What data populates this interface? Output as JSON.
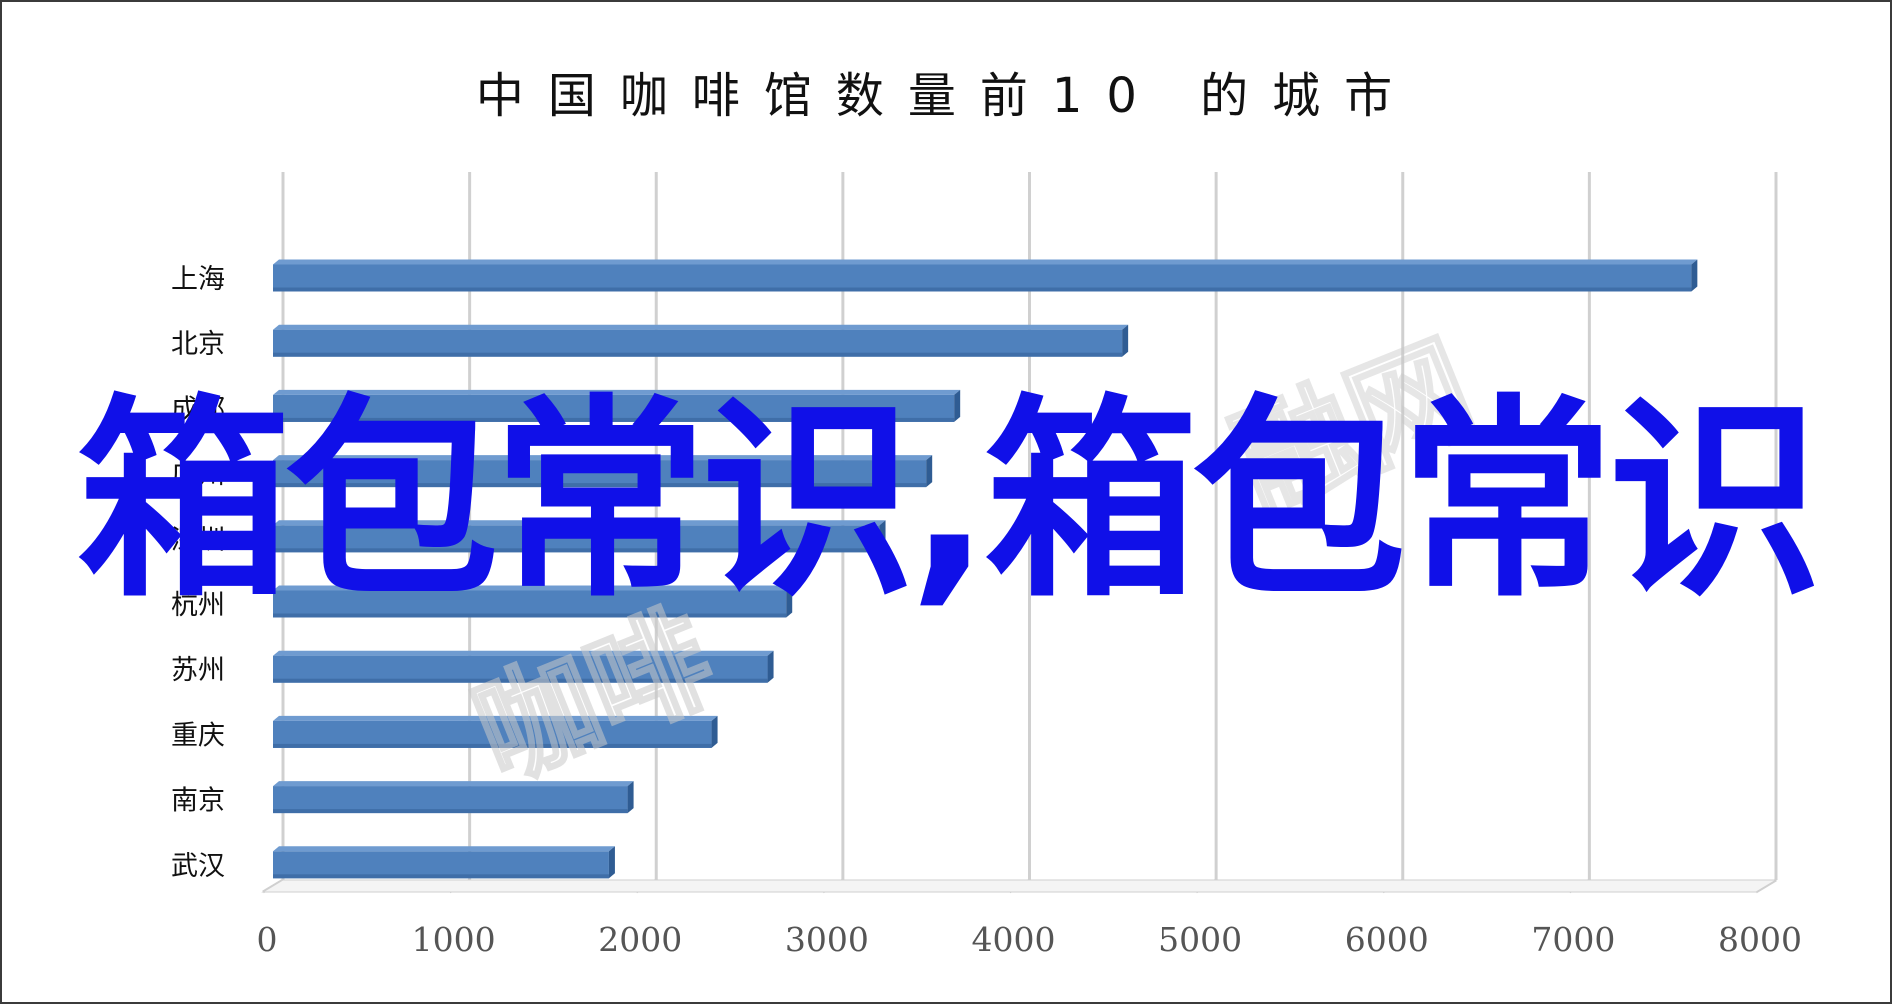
{
  "chart_data": {
    "type": "bar",
    "orientation": "horizontal",
    "title": "中国咖啡馆数量前10 的城市",
    "categories": [
      "上海",
      "北京",
      "成都",
      "广州",
      "深圳",
      "杭州",
      "苏州",
      "重庆",
      "南京",
      "武汉"
    ],
    "values": [
      7600,
      4550,
      3650,
      3500,
      3250,
      2750,
      2650,
      2350,
      1900,
      1800
    ],
    "xticks": [
      "0",
      "1000",
      "2000",
      "3000",
      "4000",
      "5000",
      "6000",
      "7000",
      "8000"
    ],
    "xlim": [
      0,
      8000
    ],
    "grid": true,
    "legend": "none",
    "bar_color": "#4f81bd"
  },
  "overlay": {
    "text": "箱包常识,箱包常识",
    "color": "#1010e8"
  },
  "watermark": {
    "text_a": "咖啡",
    "text_b": "融网"
  }
}
